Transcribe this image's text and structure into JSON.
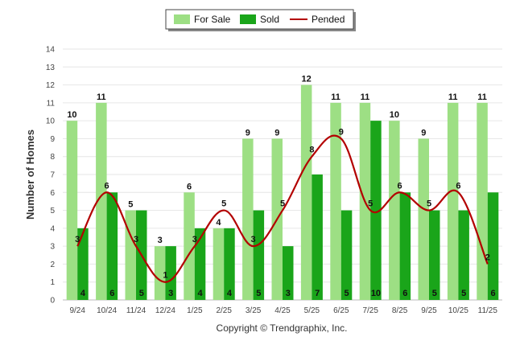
{
  "chart_data": {
    "type": "bar",
    "categories": [
      "9/24",
      "10/24",
      "11/24",
      "12/24",
      "1/25",
      "2/25",
      "3/25",
      "4/25",
      "5/25",
      "6/25",
      "7/25",
      "8/25",
      "9/25",
      "10/25",
      "11/25"
    ],
    "series": [
      {
        "name": "For Sale",
        "kind": "bar",
        "color": "#9ddf84",
        "values": [
          10,
          11,
          5,
          3,
          6,
          4,
          9,
          9,
          12,
          11,
          11,
          10,
          9,
          11,
          11
        ]
      },
      {
        "name": "Sold",
        "kind": "bar",
        "color": "#1aa51a",
        "values": [
          4,
          6,
          5,
          3,
          4,
          4,
          5,
          3,
          7,
          5,
          10,
          6,
          5,
          5,
          6
        ]
      },
      {
        "name": "Pended",
        "kind": "line",
        "color": "#b30000",
        "values": [
          3,
          6,
          3,
          1,
          3,
          5,
          3,
          5,
          8,
          9,
          5,
          6,
          5,
          6,
          2
        ]
      }
    ],
    "ylabel": "Number of Homes",
    "ylim": [
      0,
      14
    ],
    "yticks": [
      0,
      1,
      2,
      3,
      4,
      5,
      6,
      7,
      8,
      9,
      10,
      11,
      12,
      13,
      14
    ],
    "grid": true,
    "legend": "top-center"
  },
  "footer": {
    "copyright": "Copyright © Trendgraphix, Inc."
  }
}
